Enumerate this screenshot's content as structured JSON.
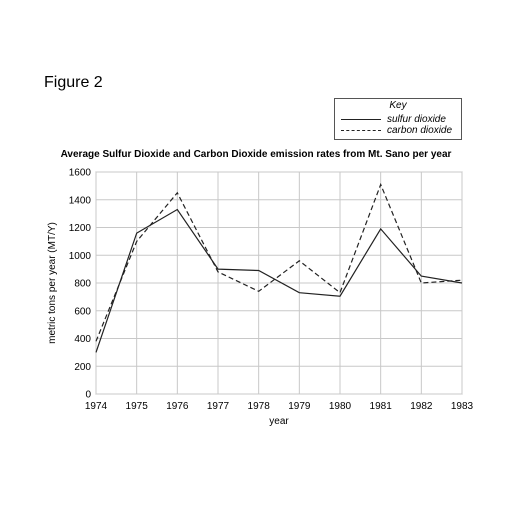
{
  "figure_label": "Figure 2",
  "chart_data": {
    "type": "line",
    "title": "Average Sulfur Dioxide and Carbon Dioxide emission rates from Mt. Sano per year",
    "xlabel": "year",
    "ylabel": "metric tons per year (MT/Y)",
    "x": [
      1974,
      1975,
      1976,
      1977,
      1978,
      1979,
      1980,
      1981,
      1982,
      1983
    ],
    "ylim": [
      0,
      1600
    ],
    "yticks": [
      0,
      200,
      400,
      600,
      800,
      1000,
      1200,
      1400,
      1600
    ],
    "grid": true,
    "legend": {
      "title": "Key",
      "placement": "top-right"
    },
    "series": [
      {
        "name": "sulfur dioxide",
        "line_style": "solid",
        "color": "#222222",
        "values": [
          300,
          1160,
          1330,
          900,
          890,
          730,
          705,
          1190,
          850,
          800
        ]
      },
      {
        "name": "carbon dioxide",
        "line_style": "dashed",
        "color": "#222222",
        "values": [
          380,
          1100,
          1450,
          880,
          740,
          960,
          730,
          1510,
          800,
          820
        ]
      }
    ]
  }
}
